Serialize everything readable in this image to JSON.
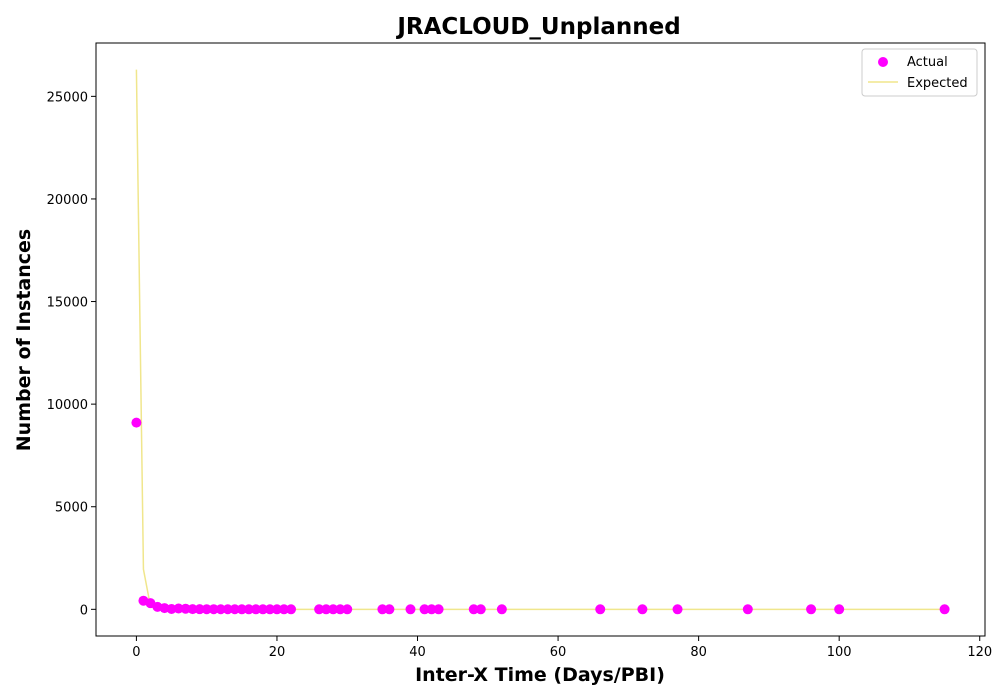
{
  "chart_data": {
    "type": "scatter",
    "title": "JRACLOUD_Unplanned",
    "xlabel": "Inter-X Time (Days/PBI)",
    "ylabel": "Number of Instances",
    "xlim": [
      -5.75,
      120.75
    ],
    "ylim": [
      -1300,
      27600
    ],
    "xticks": [
      0,
      20,
      40,
      60,
      80,
      100,
      120
    ],
    "yticks": [
      0,
      5000,
      10000,
      15000,
      20000,
      25000
    ],
    "grid": false,
    "legend_position": "top-right",
    "colors": {
      "actual": "#ff00ff",
      "expected": "#f0e68c"
    },
    "series": [
      {
        "name": "Actual",
        "type": "scatter",
        "x": [
          0,
          1,
          2,
          3,
          4,
          5,
          6,
          7,
          8,
          9,
          10,
          11,
          12,
          13,
          14,
          15,
          16,
          17,
          18,
          19,
          20,
          21,
          22,
          26,
          27,
          28,
          29,
          30,
          35,
          36,
          39,
          41,
          42,
          43,
          48,
          49,
          52,
          66,
          72,
          77,
          87,
          96,
          100,
          115
        ],
        "y": [
          9100,
          420,
          300,
          120,
          60,
          15,
          40,
          30,
          10,
          8,
          6,
          5,
          4,
          3,
          3,
          2,
          2,
          2,
          2,
          1,
          1,
          1,
          1,
          1,
          1,
          1,
          1,
          1,
          1,
          1,
          1,
          1,
          1,
          1,
          1,
          1,
          1,
          1,
          1,
          1,
          1,
          1,
          1,
          1
        ]
      },
      {
        "name": "Expected",
        "type": "line",
        "x": [
          0,
          1,
          2,
          3,
          4,
          5,
          6,
          7,
          8,
          10,
          15,
          20,
          30,
          40,
          60,
          80,
          100,
          115
        ],
        "y": [
          26300,
          1950,
          150,
          12,
          1,
          0,
          0,
          0,
          0,
          0,
          0,
          0,
          0,
          0,
          0,
          0,
          0,
          0
        ]
      }
    ]
  }
}
